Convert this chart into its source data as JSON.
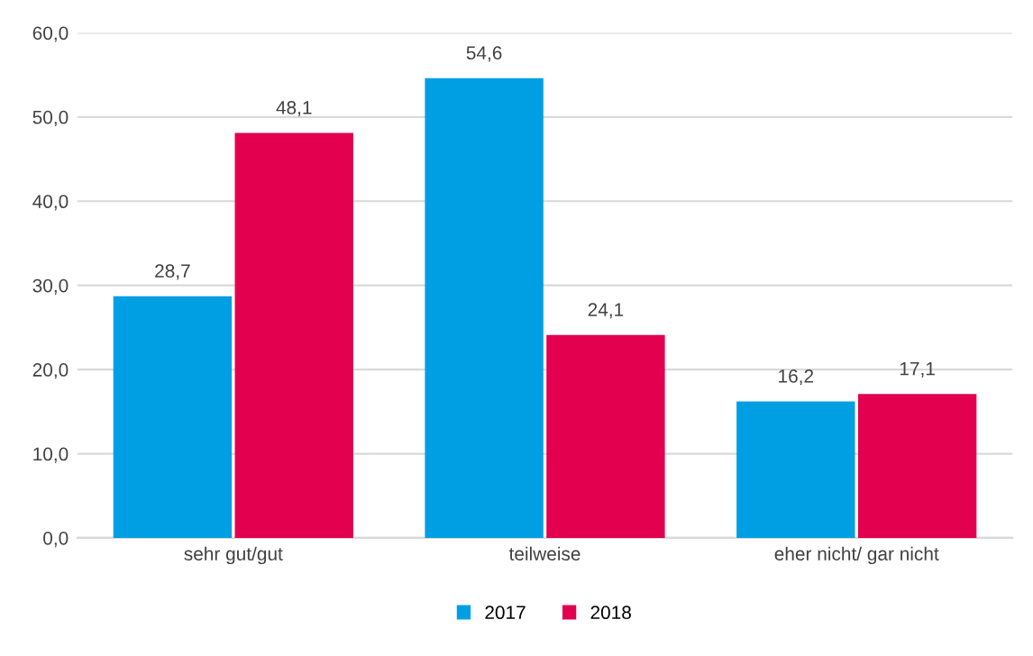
{
  "chart_data": {
    "type": "bar",
    "categories": [
      "sehr gut/gut",
      "teilweise",
      "eher nicht/ gar nicht"
    ],
    "series": [
      {
        "name": "2017",
        "color": "#009fe3",
        "values": [
          28.7,
          54.6,
          16.2
        ],
        "value_labels": [
          "28,7",
          "54,6",
          "16,2"
        ]
      },
      {
        "name": "2018",
        "color": "#e3004f",
        "values": [
          48.1,
          24.1,
          17.1
        ],
        "value_labels": [
          "48,1",
          "24,1",
          "17,1"
        ]
      }
    ],
    "ylim": [
      0,
      60
    ],
    "yticks": [
      {
        "value": 0,
        "label": "0,0"
      },
      {
        "value": 10,
        "label": "10,0"
      },
      {
        "value": 20,
        "label": "20,0"
      },
      {
        "value": 30,
        "label": "30,0"
      },
      {
        "value": 40,
        "label": "40,0"
      },
      {
        "value": 50,
        "label": "50,0"
      },
      {
        "value": 60,
        "label": "60,0"
      }
    ],
    "grid": "y",
    "legend": "bottom"
  }
}
